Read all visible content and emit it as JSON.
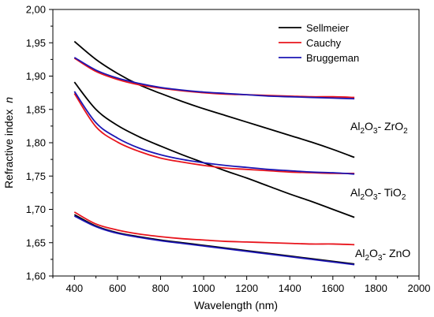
{
  "chart_data": {
    "type": "line",
    "xlabel": "Wavelength (nm)",
    "ylabel": "Refractive index",
    "ylabel_italic": "n",
    "xlim": [
      300,
      2000
    ],
    "ylim": [
      1.6,
      2.0
    ],
    "xticks": [
      400,
      600,
      800,
      1000,
      1200,
      1400,
      1600,
      1800,
      2000
    ],
    "yticks": [
      1.6,
      1.65,
      1.7,
      1.75,
      1.8,
      1.85,
      1.9,
      1.95,
      2.0
    ],
    "xtick_labels": [
      "400",
      "600",
      "800",
      "1000",
      "1200",
      "1400",
      "1600",
      "1800",
      "2000"
    ],
    "ytick_labels": [
      "1,60",
      "1,65",
      "1,70",
      "1,75",
      "1,80",
      "1,85",
      "1,90",
      "1,95",
      "2,00"
    ],
    "legend": {
      "position": "top-right",
      "entries": [
        {
          "name": "Sellmeier",
          "color": "#000000"
        },
        {
          "name": "Cauchy",
          "color": "#e8141c"
        },
        {
          "name": "Bruggeman",
          "color": "#1c16b4"
        }
      ]
    },
    "annotations": [
      {
        "parts": [
          "Al",
          "2",
          "O",
          "3",
          "- ZrO",
          "2"
        ]
      },
      {
        "parts": [
          "Al",
          "2",
          "O",
          "3",
          "- TiO",
          "2"
        ]
      },
      {
        "parts": [
          "Al",
          "2",
          "O",
          "3",
          "- ZnO"
        ]
      }
    ],
    "series": [
      {
        "material": "Al2O3- ZrO2",
        "model": "Sellmeier",
        "color": "#000000",
        "x": [
          400,
          500,
          600,
          700,
          800,
          900,
          1000,
          1100,
          1200,
          1300,
          1400,
          1500,
          1600,
          1700
        ],
        "y": [
          1.952,
          1.925,
          1.904,
          1.887,
          1.874,
          1.862,
          1.851,
          1.841,
          1.831,
          1.821,
          1.811,
          1.801,
          1.79,
          1.778
        ]
      },
      {
        "material": "Al2O3- ZrO2",
        "model": "Cauchy",
        "color": "#e8141c",
        "x": [
          400,
          500,
          600,
          700,
          800,
          900,
          1000,
          1100,
          1200,
          1300,
          1400,
          1500,
          1600,
          1700
        ],
        "y": [
          1.927,
          1.907,
          1.895,
          1.887,
          1.882,
          1.878,
          1.875,
          1.873,
          1.872,
          1.871,
          1.87,
          1.869,
          1.869,
          1.868
        ]
      },
      {
        "material": "Al2O3- ZrO2",
        "model": "Bruggeman",
        "color": "#1c16b4",
        "x": [
          400,
          500,
          600,
          700,
          800,
          900,
          1000,
          1100,
          1200,
          1300,
          1400,
          1500,
          1600,
          1700
        ],
        "y": [
          1.928,
          1.909,
          1.897,
          1.889,
          1.883,
          1.879,
          1.876,
          1.874,
          1.872,
          1.87,
          1.869,
          1.868,
          1.867,
          1.866
        ]
      },
      {
        "material": "Al2O3- TiO2",
        "model": "Sellmeier",
        "color": "#000000",
        "x": [
          400,
          500,
          600,
          700,
          800,
          900,
          1000,
          1100,
          1200,
          1300,
          1400,
          1500,
          1600,
          1700
        ],
        "y": [
          1.891,
          1.85,
          1.826,
          1.809,
          1.795,
          1.782,
          1.77,
          1.758,
          1.747,
          1.735,
          1.723,
          1.712,
          1.7,
          1.688
        ]
      },
      {
        "material": "Al2O3- TiO2",
        "model": "Cauchy",
        "color": "#e8141c",
        "x": [
          400,
          500,
          600,
          700,
          800,
          900,
          1000,
          1100,
          1200,
          1300,
          1400,
          1500,
          1600,
          1700
        ],
        "y": [
          1.874,
          1.824,
          1.801,
          1.787,
          1.777,
          1.771,
          1.766,
          1.762,
          1.76,
          1.758,
          1.756,
          1.755,
          1.754,
          1.754
        ]
      },
      {
        "material": "Al2O3- TiO2",
        "model": "Bruggeman",
        "color": "#1c16b4",
        "x": [
          400,
          500,
          600,
          700,
          800,
          900,
          1000,
          1100,
          1200,
          1300,
          1400,
          1500,
          1600,
          1700
        ],
        "y": [
          1.877,
          1.83,
          1.807,
          1.792,
          1.782,
          1.775,
          1.77,
          1.766,
          1.763,
          1.76,
          1.758,
          1.756,
          1.755,
          1.753
        ]
      },
      {
        "material": "Al2O3- ZnO",
        "model": "Sellmeier",
        "color": "#000000",
        "x": [
          400,
          500,
          600,
          700,
          800,
          900,
          1000,
          1100,
          1200,
          1300,
          1400,
          1500,
          1600,
          1700
        ],
        "y": [
          1.692,
          1.675,
          1.665,
          1.659,
          1.654,
          1.65,
          1.646,
          1.642,
          1.638,
          1.634,
          1.63,
          1.626,
          1.622,
          1.618
        ]
      },
      {
        "material": "Al2O3- ZnO",
        "model": "Cauchy",
        "color": "#e8141c",
        "x": [
          400,
          500,
          600,
          700,
          800,
          900,
          1000,
          1100,
          1200,
          1300,
          1400,
          1500,
          1600,
          1700
        ],
        "y": [
          1.696,
          1.678,
          1.669,
          1.663,
          1.659,
          1.656,
          1.654,
          1.652,
          1.651,
          1.65,
          1.649,
          1.648,
          1.648,
          1.647
        ]
      },
      {
        "material": "Al2O3- ZnO",
        "model": "Bruggeman",
        "color": "#1c16b4",
        "x": [
          400,
          500,
          600,
          700,
          800,
          900,
          1000,
          1100,
          1200,
          1300,
          1400,
          1500,
          1600,
          1700
        ],
        "y": [
          1.69,
          1.674,
          1.664,
          1.658,
          1.653,
          1.649,
          1.645,
          1.641,
          1.637,
          1.633,
          1.629,
          1.625,
          1.621,
          1.617
        ]
      }
    ]
  }
}
